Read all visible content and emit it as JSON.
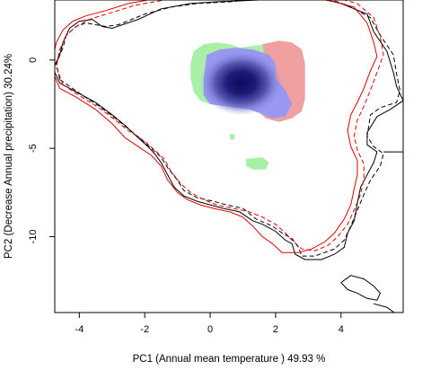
{
  "chart_data": {
    "type": "contour-density",
    "xlabel": "PC1 (Annual mean temperature ) 49.93 %",
    "ylabel": "PC2 (Decrease Annual precipitation) 30.24%",
    "xlim": [
      -4.75,
      5.9
    ],
    "ylim": [
      -14.3,
      3.4
    ],
    "xticks": [
      -4,
      -2,
      0,
      2,
      4
    ],
    "yticks": [
      0,
      -5,
      -10
    ],
    "colors": {
      "green_region": "#a8f0a8",
      "red_region": "#f0a0a0",
      "blue_region": "#9898f0",
      "blue_core": "#0a0a5a",
      "contour_black": "#000000",
      "contour_red": "#e00000"
    },
    "regions": {
      "green": [
        [
          [
            -0.6,
            -0.2
          ],
          [
            -0.5,
            0.5
          ],
          [
            -0.2,
            0.9
          ],
          [
            0.2,
            1.0
          ],
          [
            0.6,
            0.9
          ],
          [
            0.9,
            0.7
          ],
          [
            1.3,
            0.8
          ],
          [
            1.7,
            0.9
          ],
          [
            2.0,
            0.6
          ],
          [
            2.1,
            0.2
          ],
          [
            2.0,
            -0.4
          ],
          [
            1.8,
            -0.9
          ],
          [
            1.4,
            -1.4
          ],
          [
            0.9,
            -1.9
          ],
          [
            0.4,
            -2.3
          ],
          [
            0.0,
            -2.5
          ],
          [
            -0.3,
            -2.3
          ],
          [
            -0.5,
            -1.8
          ],
          [
            -0.6,
            -1.0
          ]
        ],
        [
          [
            1.1,
            -5.6
          ],
          [
            1.6,
            -5.5
          ],
          [
            1.8,
            -5.8
          ],
          [
            1.7,
            -6.2
          ],
          [
            1.3,
            -6.2
          ],
          [
            1.1,
            -6.0
          ]
        ],
        [
          [
            0.6,
            -4.2
          ],
          [
            0.75,
            -4.2
          ],
          [
            0.75,
            -4.5
          ],
          [
            0.6,
            -4.5
          ]
        ]
      ],
      "red": [
        [
          [
            1.6,
            0.9
          ],
          [
            2.1,
            1.1
          ],
          [
            2.5,
            1.0
          ],
          [
            2.8,
            0.6
          ],
          [
            2.9,
            -0.2
          ],
          [
            2.9,
            -1.2
          ],
          [
            2.9,
            -2.2
          ],
          [
            2.8,
            -2.9
          ],
          [
            2.5,
            -3.3
          ],
          [
            2.1,
            -3.5
          ],
          [
            1.7,
            -3.3
          ],
          [
            1.4,
            -2.8
          ],
          [
            1.3,
            -2.2
          ],
          [
            1.5,
            -1.0
          ],
          [
            1.7,
            -0.2
          ]
        ]
      ],
      "blue": [
        [
          [
            -0.1,
            0.3
          ],
          [
            0.3,
            0.6
          ],
          [
            0.8,
            0.7
          ],
          [
            1.3,
            0.6
          ],
          [
            1.8,
            0.3
          ],
          [
            2.0,
            -0.2
          ],
          [
            2.0,
            -1.0
          ],
          [
            2.3,
            -1.7
          ],
          [
            2.5,
            -2.5
          ],
          [
            2.3,
            -3.2
          ],
          [
            1.9,
            -3.3
          ],
          [
            1.5,
            -3.0
          ],
          [
            1.2,
            -2.8
          ],
          [
            0.8,
            -2.7
          ],
          [
            0.4,
            -2.6
          ],
          [
            0.0,
            -2.5
          ],
          [
            -0.2,
            -2.0
          ],
          [
            -0.2,
            -1.0
          ]
        ]
      ],
      "blue_core_center": [
        0.95,
        -1.3
      ]
    },
    "contours": [
      {
        "color": "#000000",
        "dash": false,
        "points": [
          [
            -4.6,
            -1.3
          ],
          [
            -4.8,
            -0.5
          ],
          [
            -4.6,
            0.3
          ],
          [
            -4.5,
            1.0
          ],
          [
            -4.3,
            1.8
          ],
          [
            -4.0,
            2.2
          ],
          [
            -3.6,
            2.3
          ],
          [
            -3.3,
            1.9
          ],
          [
            -3.0,
            1.8
          ],
          [
            -2.2,
            2.3
          ],
          [
            -1.5,
            2.9
          ],
          [
            -0.6,
            3.2
          ],
          [
            0.2,
            3.3
          ],
          [
            1.5,
            3.4
          ],
          [
            2.2,
            3.5
          ],
          [
            3.3,
            3.5
          ],
          [
            4.0,
            3.2
          ],
          [
            4.8,
            2.6
          ],
          [
            5.0,
            1.6
          ],
          [
            5.4,
            0.5
          ],
          [
            5.6,
            -0.7
          ],
          [
            5.7,
            -1.5
          ],
          [
            5.9,
            -2.3
          ],
          [
            5.5,
            -2.8
          ],
          [
            5.1,
            -3.2
          ],
          [
            4.8,
            -4.1
          ],
          [
            4.8,
            -4.8
          ],
          [
            5.1,
            -5.2
          ],
          [
            5.0,
            -5.8
          ],
          [
            4.8,
            -6.5
          ],
          [
            4.6,
            -7.2
          ],
          [
            4.5,
            -8.1
          ],
          [
            4.4,
            -9.1
          ],
          [
            4.2,
            -9.8
          ],
          [
            4.1,
            -10.6
          ],
          [
            3.8,
            -11.0
          ],
          [
            3.4,
            -11.3
          ],
          [
            2.9,
            -11.3
          ],
          [
            2.6,
            -11.0
          ],
          [
            2.5,
            -10.4
          ],
          [
            2.3,
            -10.2
          ],
          [
            2.0,
            -9.7
          ],
          [
            1.6,
            -9.3
          ],
          [
            1.3,
            -9.1
          ],
          [
            0.9,
            -8.6
          ],
          [
            0.4,
            -8.4
          ],
          [
            0.0,
            -8.2
          ],
          [
            -0.4,
            -8.0
          ],
          [
            -0.8,
            -7.7
          ],
          [
            -1.1,
            -7.2
          ],
          [
            -1.3,
            -6.5
          ],
          [
            -1.5,
            -5.8
          ],
          [
            -1.7,
            -5.3
          ],
          [
            -1.9,
            -4.9
          ],
          [
            -2.2,
            -4.4
          ],
          [
            -2.6,
            -3.7
          ],
          [
            -3.0,
            -3.1
          ],
          [
            -3.5,
            -2.4
          ],
          [
            -4.0,
            -1.9
          ],
          [
            -4.6,
            -1.3
          ]
        ]
      },
      {
        "color": "#000000",
        "dash": true,
        "points": [
          [
            -4.6,
            -1.1
          ],
          [
            -4.7,
            -0.2
          ],
          [
            -4.5,
            0.7
          ],
          [
            -4.4,
            1.4
          ],
          [
            -4.1,
            1.9
          ],
          [
            -3.8,
            2.1
          ],
          [
            -3.5,
            2.0
          ],
          [
            -3.2,
            1.9
          ],
          [
            -2.8,
            2.0
          ],
          [
            -2.0,
            2.6
          ],
          [
            -1.2,
            3.0
          ],
          [
            -0.4,
            3.2
          ],
          [
            0.6,
            3.3
          ],
          [
            1.6,
            3.5
          ],
          [
            2.5,
            3.6
          ],
          [
            3.4,
            3.6
          ],
          [
            4.2,
            3.1
          ],
          [
            4.9,
            2.4
          ],
          [
            5.2,
            1.4
          ],
          [
            5.6,
            0.3
          ],
          [
            5.7,
            -0.8
          ],
          [
            5.8,
            -1.7
          ],
          [
            5.7,
            -2.4
          ],
          [
            5.2,
            -2.7
          ],
          [
            4.9,
            -3.1
          ],
          [
            4.8,
            -4.3
          ],
          [
            5.0,
            -4.9
          ],
          [
            5.3,
            -5.3
          ],
          [
            5.2,
            -6.0
          ],
          [
            4.9,
            -6.8
          ],
          [
            4.7,
            -7.6
          ],
          [
            4.5,
            -8.5
          ],
          [
            4.3,
            -9.4
          ],
          [
            4.1,
            -10.2
          ],
          [
            3.8,
            -10.7
          ],
          [
            3.2,
            -11.1
          ],
          [
            2.8,
            -11.1
          ],
          [
            2.7,
            -10.6
          ],
          [
            2.5,
            -10.1
          ],
          [
            2.2,
            -9.8
          ],
          [
            1.9,
            -9.4
          ],
          [
            1.4,
            -9.0
          ],
          [
            1.0,
            -8.4
          ],
          [
            0.5,
            -8.2
          ],
          [
            0.1,
            -8.0
          ],
          [
            -0.4,
            -7.8
          ],
          [
            -0.8,
            -7.4
          ],
          [
            -1.0,
            -6.8
          ],
          [
            -1.3,
            -6.1
          ],
          [
            -1.5,
            -5.5
          ],
          [
            -1.8,
            -5.0
          ],
          [
            -2.1,
            -4.5
          ],
          [
            -2.5,
            -3.9
          ],
          [
            -2.9,
            -3.3
          ],
          [
            -3.4,
            -2.6
          ],
          [
            -3.9,
            -2.0
          ],
          [
            -4.6,
            -1.1
          ]
        ]
      },
      {
        "color": "#e00000",
        "dash": false,
        "points": [
          [
            -4.6,
            -1.6
          ],
          [
            -4.8,
            -0.7
          ],
          [
            -4.8,
            0.2
          ],
          [
            -4.7,
            1.0
          ],
          [
            -4.5,
            1.7
          ],
          [
            -4.2,
            2.2
          ],
          [
            -3.8,
            2.5
          ],
          [
            -3.2,
            2.8
          ],
          [
            -2.5,
            3.2
          ],
          [
            -1.6,
            3.5
          ],
          [
            -0.6,
            3.6
          ],
          [
            0.2,
            3.5
          ],
          [
            1.0,
            3.4
          ],
          [
            2.0,
            3.6
          ],
          [
            3.0,
            3.6
          ],
          [
            3.8,
            3.3
          ],
          [
            4.4,
            3.0
          ],
          [
            4.8,
            2.1
          ],
          [
            5.0,
            1.0
          ],
          [
            5.1,
            0.2
          ],
          [
            4.9,
            -0.6
          ],
          [
            4.7,
            -1.6
          ],
          [
            4.5,
            -2.4
          ],
          [
            4.3,
            -3.1
          ],
          [
            4.2,
            -4.0
          ],
          [
            4.3,
            -4.9
          ],
          [
            4.5,
            -5.7
          ],
          [
            4.5,
            -6.5
          ],
          [
            4.4,
            -7.3
          ],
          [
            4.3,
            -8.2
          ],
          [
            4.1,
            -9.0
          ],
          [
            3.8,
            -9.8
          ],
          [
            3.5,
            -10.3
          ],
          [
            3.1,
            -10.7
          ],
          [
            2.7,
            -10.9
          ],
          [
            2.2,
            -10.9
          ],
          [
            1.9,
            -10.4
          ],
          [
            1.6,
            -10.0
          ],
          [
            1.3,
            -9.4
          ],
          [
            1.0,
            -8.9
          ],
          [
            0.6,
            -8.6
          ],
          [
            0.1,
            -8.4
          ],
          [
            -0.3,
            -8.2
          ],
          [
            -0.7,
            -7.9
          ],
          [
            -1.0,
            -7.5
          ],
          [
            -1.3,
            -6.8
          ],
          [
            -1.5,
            -6.0
          ],
          [
            -1.8,
            -5.4
          ],
          [
            -2.2,
            -4.9
          ],
          [
            -2.6,
            -4.4
          ],
          [
            -3.0,
            -3.6
          ],
          [
            -3.5,
            -2.8
          ],
          [
            -4.1,
            -2.1
          ],
          [
            -4.6,
            -1.6
          ]
        ]
      },
      {
        "color": "#e00000",
        "dash": true,
        "points": [
          [
            -4.5,
            -1.4
          ],
          [
            -4.7,
            -0.4
          ],
          [
            -4.6,
            0.6
          ],
          [
            -4.4,
            1.4
          ],
          [
            -4.1,
            1.9
          ],
          [
            -3.7,
            2.3
          ],
          [
            -3.0,
            2.7
          ],
          [
            -2.3,
            3.1
          ],
          [
            -1.4,
            3.4
          ],
          [
            -0.4,
            3.5
          ],
          [
            0.4,
            3.4
          ],
          [
            1.2,
            3.5
          ],
          [
            2.2,
            3.7
          ],
          [
            3.2,
            3.7
          ],
          [
            3.9,
            3.5
          ],
          [
            4.5,
            3.2
          ],
          [
            5.0,
            2.4
          ],
          [
            5.2,
            1.3
          ],
          [
            5.3,
            0.3
          ],
          [
            5.1,
            -0.7
          ],
          [
            4.9,
            -1.7
          ],
          [
            4.7,
            -2.6
          ],
          [
            4.5,
            -3.4
          ],
          [
            4.4,
            -4.3
          ],
          [
            4.5,
            -5.1
          ],
          [
            4.7,
            -5.9
          ],
          [
            4.7,
            -6.7
          ],
          [
            4.6,
            -7.6
          ],
          [
            4.4,
            -8.5
          ],
          [
            4.2,
            -9.3
          ],
          [
            3.9,
            -10.0
          ],
          [
            3.6,
            -10.5
          ],
          [
            3.2,
            -10.8
          ],
          [
            2.8,
            -10.7
          ],
          [
            2.5,
            -10.2
          ],
          [
            2.3,
            -9.8
          ],
          [
            2.0,
            -9.3
          ],
          [
            1.6,
            -8.9
          ],
          [
            1.2,
            -8.6
          ],
          [
            0.7,
            -8.4
          ],
          [
            0.2,
            -8.2
          ],
          [
            -0.2,
            -7.9
          ],
          [
            -0.6,
            -7.5
          ],
          [
            -0.9,
            -7.0
          ],
          [
            -1.2,
            -6.3
          ],
          [
            -1.4,
            -5.6
          ],
          [
            -1.7,
            -5.1
          ],
          [
            -2.0,
            -4.6
          ],
          [
            -2.5,
            -4.0
          ],
          [
            -2.9,
            -3.4
          ],
          [
            -3.4,
            -2.7
          ],
          [
            -4.0,
            -2.0
          ],
          [
            -4.5,
            -1.4
          ]
        ]
      },
      {
        "color": "#000000",
        "dash": false,
        "points": [
          [
            4.0,
            -12.6
          ],
          [
            4.3,
            -12.2
          ],
          [
            4.7,
            -12.4
          ],
          [
            5.0,
            -12.8
          ],
          [
            5.2,
            -13.2
          ],
          [
            5.1,
            -13.6
          ],
          [
            4.8,
            -13.5
          ],
          [
            4.5,
            -13.2
          ],
          [
            4.2,
            -13.0
          ],
          [
            4.0,
            -12.6
          ]
        ]
      },
      {
        "color": "#000000",
        "dash": false,
        "points": [
          [
            5.0,
            -13.8
          ],
          [
            5.4,
            -14.0
          ],
          [
            5.7,
            -14.4
          ]
        ]
      },
      {
        "color": "#000000",
        "dash": false,
        "points": [
          [
            5.3,
            -5.2
          ],
          [
            5.9,
            -5.2
          ]
        ]
      }
    ]
  }
}
